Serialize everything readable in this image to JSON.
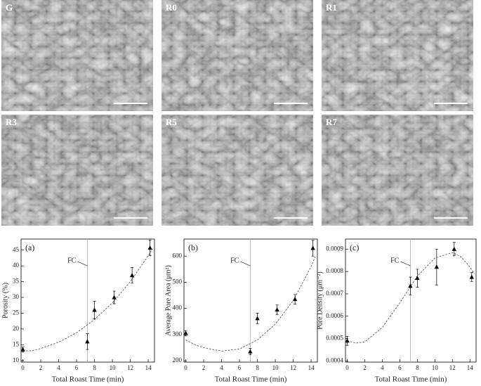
{
  "images": [
    {
      "label": "G"
    },
    {
      "label": "R0"
    },
    {
      "label": "R1"
    },
    {
      "label": "R3"
    },
    {
      "label": "R5"
    },
    {
      "label": "R7"
    }
  ],
  "chart_data": [
    {
      "type": "scatter",
      "label": "(a)",
      "xlabel": "Total Roast Time (min)",
      "ylabel": "Porosity (%)",
      "color": "#000000",
      "x": [
        0,
        7.2,
        8,
        10.2,
        12.2,
        14.2
      ],
      "values": [
        13.5,
        16,
        26,
        30,
        37,
        45.7
      ],
      "errors": [
        0.8,
        2.5,
        2.8,
        2,
        2.5,
        2.5
      ],
      "fit": {
        "x": [
          0,
          1,
          2,
          4,
          6,
          8,
          10,
          12,
          14,
          14.5
        ],
        "values": [
          13,
          13.1,
          13.8,
          15.8,
          18.8,
          23,
          28.3,
          35,
          43.2,
          45.5
        ]
      },
      "annotation": {
        "text": "FC",
        "x": 7.2
      },
      "xlim": [
        -0.2,
        14.7
      ],
      "ylim": [
        9.5,
        48.5
      ],
      "xticks": [
        0,
        2,
        4,
        6,
        8,
        10,
        12,
        14
      ],
      "yticks": [
        10,
        15,
        20,
        25,
        30,
        35,
        40,
        45
      ]
    },
    {
      "type": "scatter",
      "label": "(b)",
      "xlabel": "Total Roast Time (min)",
      "ylabel": "Average Pore Area (μm²)",
      "color": "#000000",
      "x": [
        0,
        7.2,
        8,
        10.2,
        12.2,
        14.2
      ],
      "values": [
        305,
        235,
        362,
        395,
        435,
        630
      ],
      "errors": [
        10,
        12,
        20,
        18,
        18,
        30
      ],
      "fit": {
        "x": [
          0,
          1,
          2,
          4,
          6,
          8,
          10,
          12,
          14,
          14.5
        ],
        "values": [
          280,
          262,
          250,
          237,
          245,
          280,
          340,
          430,
          560,
          600
        ]
      },
      "annotation": {
        "text": "FC",
        "x": 7.2
      },
      "xlim": [
        -0.2,
        14.7
      ],
      "ylim": [
        195,
        665
      ],
      "xticks": [
        0,
        2,
        4,
        6,
        8,
        10,
        12,
        14
      ],
      "yticks": [
        200,
        300,
        400,
        500,
        600
      ]
    },
    {
      "type": "scatter",
      "label": "(c)",
      "xlabel": "Total Roast Time (min)",
      "ylabel": "Pore Density (μm⁻²)",
      "color": "#000000",
      "x": [
        0,
        7.2,
        8,
        10.2,
        12.2,
        14.2
      ],
      "values": [
        0.00049,
        0.000735,
        0.00077,
        0.00082,
        0.0009,
        0.000775
      ],
      "errors": [
        2e-05,
        4e-05,
        4e-05,
        8e-05,
        3e-05,
        2e-05
      ],
      "fit": {
        "x": [
          0,
          1,
          2,
          4,
          6,
          8,
          10,
          12,
          13,
          14,
          14.5
        ],
        "values": [
          0.00049,
          0.00048,
          0.000485,
          0.00055,
          0.00066,
          0.00078,
          0.00086,
          0.000885,
          0.000865,
          0.00082,
          0.00079
        ]
      },
      "annotation": {
        "text": "FC",
        "x": 7.2
      },
      "xlim": [
        -0.2,
        14.7
      ],
      "ylim": [
        0.000395,
        0.000945
      ],
      "xticks": [
        0,
        2,
        4,
        6,
        8,
        10,
        12,
        14
      ],
      "yticks": [
        0.0004,
        0.0005,
        0.0006,
        0.0007,
        0.0008,
        0.0009
      ]
    }
  ]
}
